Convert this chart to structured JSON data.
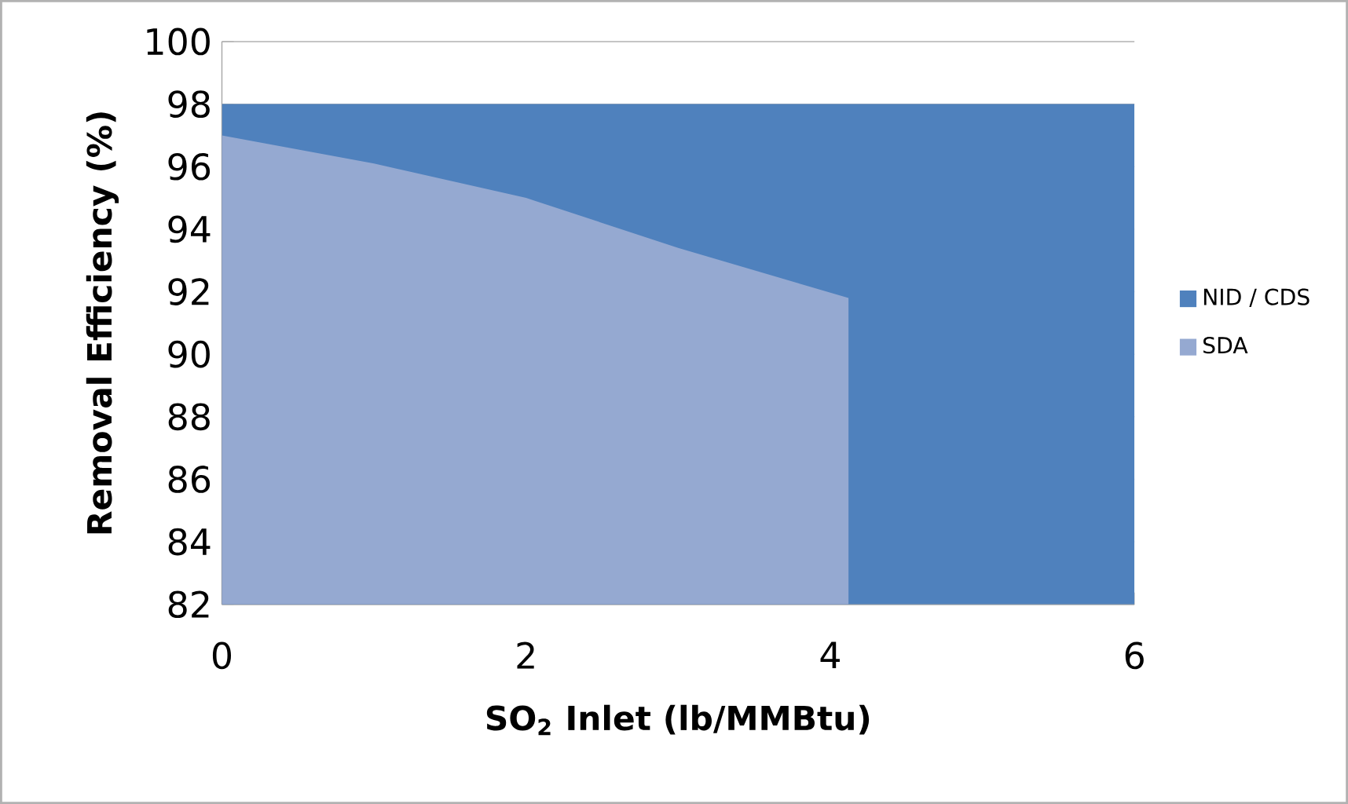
{
  "chart_data": {
    "type": "area",
    "xlabel": "SO$_{2}$ Inlet (lb/MMBtu)",
    "ylabel": "Removal Efficiency (%)",
    "series": [
      {
        "name": "NID / CDS",
        "color": "#4f81bd",
        "x": [
          0,
          6
        ],
        "values": [
          98,
          98
        ]
      },
      {
        "name": "SDA",
        "color": "#95a9d1",
        "x": [
          0,
          1,
          2,
          3,
          4.12
        ],
        "values": [
          97,
          96.1,
          95,
          93.4,
          91.8
        ]
      }
    ],
    "xlim": [
      0,
      6
    ],
    "ylim": [
      82,
      100
    ],
    "xticks": [
      0,
      2,
      4,
      6
    ],
    "yticks": [
      82,
      84,
      86,
      88,
      90,
      92,
      94,
      96,
      98,
      100
    ],
    "grid": "y",
    "legend": "right"
  }
}
